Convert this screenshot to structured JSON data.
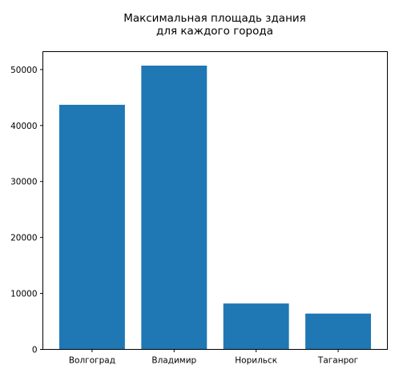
{
  "chart_data": {
    "type": "bar",
    "title_lines": [
      "Максимальная площадь здания",
      "для каждого города"
    ],
    "categories": [
      "Волгоград",
      "Владимир",
      "Норильск",
      "Таганрог"
    ],
    "values": [
      43700,
      50700,
      8200,
      6400
    ],
    "ylim": [
      0,
      53200
    ],
    "yticks": [
      0,
      10000,
      20000,
      30000,
      40000,
      50000
    ],
    "xlabel": "",
    "ylabel": "",
    "grid": false,
    "bar_color": "#1f77b4"
  }
}
